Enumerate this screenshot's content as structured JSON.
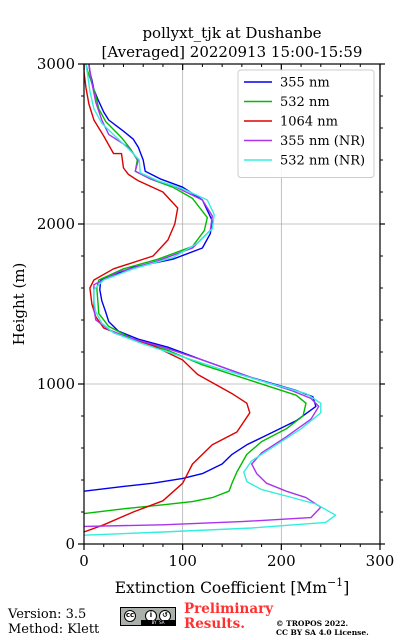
{
  "chart_data": {
    "type": "line",
    "title": "pollyxt_tjk at Dushanbe",
    "subtitle": "[Averaged] 20220913 15:00-15:59",
    "xlabel": "Extinction Coefficient [Mm",
    "xlabel_sup": "−1",
    "xlabel_end": "]",
    "ylabel": "Height (m)",
    "xlim": [
      0,
      300
    ],
    "ylim": [
      0,
      3000
    ],
    "xticks": [
      "0",
      "100",
      "200",
      "300"
    ],
    "yticks": [
      "0",
      "1000",
      "2000",
      "3000"
    ],
    "grid": true,
    "legend_position": "top-right",
    "series": [
      {
        "name": "355 nm",
        "color": "#0000ee",
        "points": [
          [
            0,
            330
          ],
          [
            40,
            360
          ],
          [
            70,
            380
          ],
          [
            100,
            410
          ],
          [
            120,
            440
          ],
          [
            140,
            500
          ],
          [
            150,
            560
          ],
          [
            165,
            620
          ],
          [
            185,
            680
          ],
          [
            215,
            770
          ],
          [
            235,
            860
          ],
          [
            232,
            920
          ],
          [
            215,
            960
          ],
          [
            170,
            1040
          ],
          [
            120,
            1150
          ],
          [
            85,
            1230
          ],
          [
            55,
            1280
          ],
          [
            35,
            1330
          ],
          [
            25,
            1390
          ],
          [
            22,
            1450
          ],
          [
            18,
            1520
          ],
          [
            16,
            1590
          ],
          [
            17,
            1650
          ],
          [
            50,
            1730
          ],
          [
            90,
            1780
          ],
          [
            120,
            1850
          ],
          [
            128,
            1940
          ],
          [
            130,
            2020
          ],
          [
            120,
            2150
          ],
          [
            100,
            2230
          ],
          [
            78,
            2280
          ],
          [
            62,
            2330
          ],
          [
            60,
            2400
          ],
          [
            55,
            2480
          ],
          [
            50,
            2530
          ],
          [
            40,
            2580
          ],
          [
            25,
            2650
          ],
          [
            20,
            2700
          ],
          [
            14,
            2780
          ],
          [
            10,
            2840
          ],
          [
            8,
            2900
          ],
          [
            6,
            2950
          ],
          [
            5,
            3000
          ]
        ]
      },
      {
        "name": "532 nm",
        "color": "#00bb00",
        "points": [
          [
            0,
            190
          ],
          [
            40,
            220
          ],
          [
            80,
            245
          ],
          [
            110,
            265
          ],
          [
            130,
            290
          ],
          [
            147,
            330
          ],
          [
            150,
            380
          ],
          [
            155,
            450
          ],
          [
            165,
            560
          ],
          [
            180,
            640
          ],
          [
            205,
            720
          ],
          [
            222,
            800
          ],
          [
            225,
            880
          ],
          [
            215,
            930
          ],
          [
            175,
            1010
          ],
          [
            120,
            1120
          ],
          [
            85,
            1210
          ],
          [
            50,
            1280
          ],
          [
            25,
            1360
          ],
          [
            15,
            1440
          ],
          [
            14,
            1520
          ],
          [
            13,
            1600
          ],
          [
            15,
            1650
          ],
          [
            40,
            1720
          ],
          [
            75,
            1780
          ],
          [
            110,
            1860
          ],
          [
            122,
            1960
          ],
          [
            125,
            2040
          ],
          [
            110,
            2160
          ],
          [
            90,
            2230
          ],
          [
            68,
            2280
          ],
          [
            52,
            2330
          ],
          [
            54,
            2400
          ],
          [
            47,
            2470
          ],
          [
            38,
            2540
          ],
          [
            22,
            2640
          ],
          [
            15,
            2720
          ],
          [
            12,
            2800
          ],
          [
            8,
            2880
          ],
          [
            4,
            2950
          ],
          [
            2,
            3000
          ]
        ]
      },
      {
        "name": "1064 nm",
        "color": "#dd0000",
        "points": [
          [
            0,
            75
          ],
          [
            20,
            120
          ],
          [
            50,
            200
          ],
          [
            80,
            270
          ],
          [
            100,
            380
          ],
          [
            110,
            500
          ],
          [
            130,
            620
          ],
          [
            155,
            700
          ],
          [
            168,
            820
          ],
          [
            165,
            880
          ],
          [
            150,
            940
          ],
          [
            115,
            1060
          ],
          [
            100,
            1150
          ],
          [
            70,
            1240
          ],
          [
            40,
            1300
          ],
          [
            20,
            1350
          ],
          [
            12,
            1420
          ],
          [
            8,
            1500
          ],
          [
            6,
            1600
          ],
          [
            10,
            1650
          ],
          [
            30,
            1720
          ],
          [
            70,
            1800
          ],
          [
            85,
            1900
          ],
          [
            92,
            2000
          ],
          [
            95,
            2100
          ],
          [
            80,
            2200
          ],
          [
            55,
            2270
          ],
          [
            45,
            2310
          ],
          [
            40,
            2350
          ],
          [
            38,
            2440
          ],
          [
            30,
            2440
          ],
          [
            20,
            2550
          ],
          [
            10,
            2650
          ],
          [
            5,
            2750
          ],
          [
            2,
            2850
          ],
          [
            0,
            2950
          ],
          [
            0,
            3000
          ]
        ]
      },
      {
        "name": "355 nm (NR)",
        "color": "#aa33ee",
        "points": [
          [
            0,
            110
          ],
          [
            80,
            120
          ],
          [
            160,
            140
          ],
          [
            230,
            165
          ],
          [
            240,
            230
          ],
          [
            225,
            290
          ],
          [
            205,
            330
          ],
          [
            185,
            380
          ],
          [
            175,
            440
          ],
          [
            170,
            500
          ],
          [
            180,
            570
          ],
          [
            205,
            670
          ],
          [
            230,
            780
          ],
          [
            238,
            860
          ],
          [
            230,
            910
          ],
          [
            210,
            960
          ],
          [
            170,
            1040
          ],
          [
            120,
            1150
          ],
          [
            80,
            1230
          ],
          [
            45,
            1290
          ],
          [
            25,
            1340
          ],
          [
            12,
            1400
          ],
          [
            10,
            1470
          ],
          [
            10,
            1550
          ],
          [
            10,
            1620
          ],
          [
            35,
            1700
          ],
          [
            75,
            1770
          ],
          [
            110,
            1850
          ],
          [
            128,
            1960
          ],
          [
            130,
            2050
          ],
          [
            120,
            2150
          ],
          [
            90,
            2240
          ],
          [
            68,
            2280
          ],
          [
            52,
            2330
          ],
          [
            55,
            2400
          ],
          [
            45,
            2480
          ],
          [
            25,
            2560
          ],
          [
            18,
            2650
          ],
          [
            12,
            2760
          ],
          [
            8,
            2880
          ],
          [
            5,
            3000
          ]
        ]
      },
      {
        "name": "532 nm (NR)",
        "color": "#33eedd",
        "points": [
          [
            0,
            55
          ],
          [
            80,
            75
          ],
          [
            170,
            100
          ],
          [
            245,
            135
          ],
          [
            255,
            180
          ],
          [
            235,
            250
          ],
          [
            205,
            300
          ],
          [
            180,
            340
          ],
          [
            165,
            390
          ],
          [
            162,
            450
          ],
          [
            170,
            520
          ],
          [
            195,
            620
          ],
          [
            220,
            720
          ],
          [
            240,
            820
          ],
          [
            240,
            880
          ],
          [
            225,
            940
          ],
          [
            185,
            1010
          ],
          [
            135,
            1100
          ],
          [
            95,
            1180
          ],
          [
            60,
            1250
          ],
          [
            30,
            1320
          ],
          [
            18,
            1380
          ],
          [
            12,
            1450
          ],
          [
            10,
            1520
          ],
          [
            10,
            1590
          ],
          [
            20,
            1650
          ],
          [
            50,
            1720
          ],
          [
            90,
            1790
          ],
          [
            115,
            1880
          ],
          [
            130,
            1970
          ],
          [
            132,
            2060
          ],
          [
            125,
            2150
          ],
          [
            100,
            2220
          ],
          [
            75,
            2270
          ],
          [
            57,
            2320
          ],
          [
            56,
            2400
          ],
          [
            45,
            2470
          ],
          [
            33,
            2540
          ],
          [
            18,
            2630
          ],
          [
            10,
            2720
          ],
          [
            6,
            2830
          ],
          [
            4,
            2920
          ],
          [
            2,
            3000
          ]
        ]
      }
    ]
  },
  "footer": {
    "version": "Version: 3.5",
    "method": "Method: Klett",
    "preliminary_line1": "Preliminary",
    "preliminary_line2": "Results.",
    "copyright": "© TROPOS 2022.",
    "license": "CC BY SA 4.0 License."
  }
}
